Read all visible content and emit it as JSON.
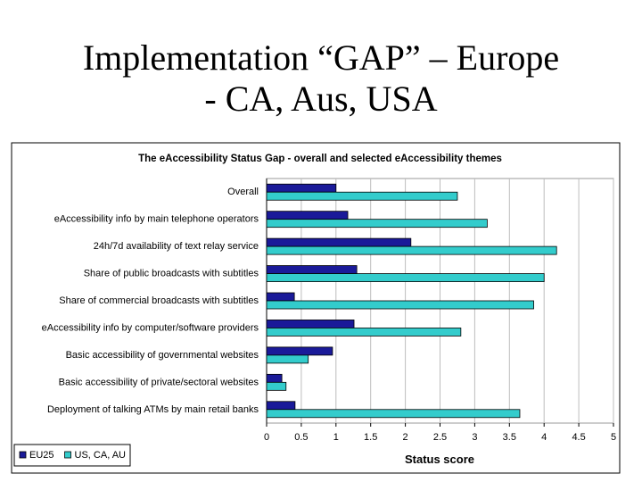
{
  "slide": {
    "title_line1": "Implementation “GAP” – Europe",
    "title_line2": "- CA, Aus, USA"
  },
  "chart_data": {
    "type": "bar",
    "orientation": "horizontal",
    "title": "The eAccessibility Status Gap - overall and selected eAccessibility themes",
    "xlabel": "Status score",
    "ylabel": "",
    "xlim": [
      0,
      5
    ],
    "xticks": [
      "0",
      "0.5",
      "1",
      "1.5",
      "2",
      "2.5",
      "3",
      "3.5",
      "4",
      "4.5",
      "5"
    ],
    "grid": true,
    "legend_position": "bottom-left",
    "categories": [
      "Overall",
      "eAccessibility info by main telephone operators",
      "24h/7d availability of text relay service",
      "Share of public broadcasts with subtitles",
      "Share of commercial broadcasts with subtitles",
      "eAccessibility info by computer/software providers",
      "Basic accessibility of governmental websites",
      "Basic accessibility of private/sectoral websites",
      "Deployment of talking ATMs by main retail banks"
    ],
    "series": [
      {
        "name": "EU25",
        "color": "#1a1a99",
        "values": [
          1.0,
          1.17,
          2.08,
          1.3,
          0.4,
          1.26,
          0.95,
          0.22,
          0.41
        ]
      },
      {
        "name": "US, CA, AU",
        "color": "#33cccc",
        "values": [
          2.75,
          3.18,
          4.18,
          4.0,
          3.85,
          2.8,
          0.6,
          0.28,
          3.65
        ]
      }
    ]
  }
}
